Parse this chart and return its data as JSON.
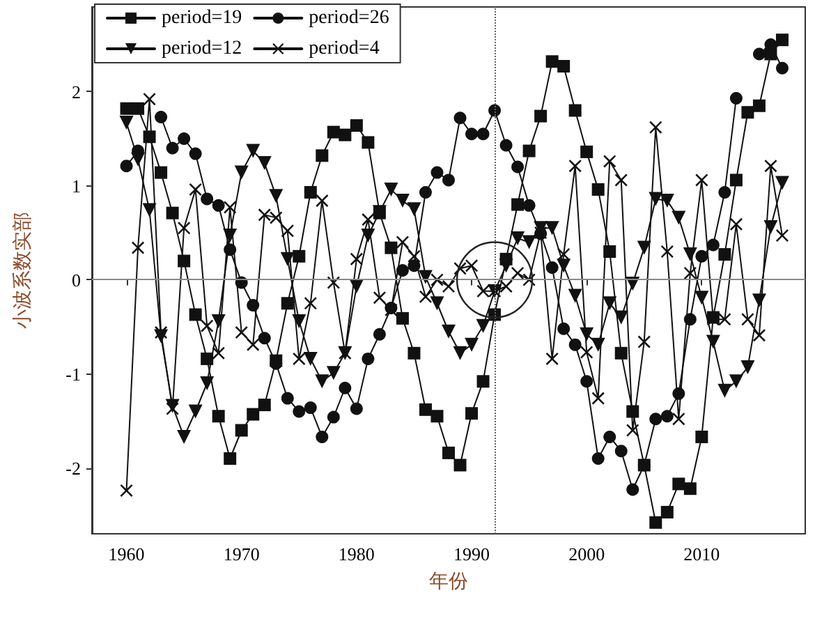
{
  "chart_data": {
    "type": "line",
    "xlabel": "年份",
    "ylabel": "小波系数实部",
    "x": [
      1960,
      1961,
      1962,
      1963,
      1964,
      1965,
      1966,
      1967,
      1968,
      1969,
      1970,
      1971,
      1972,
      1973,
      1974,
      1975,
      1976,
      1977,
      1978,
      1979,
      1980,
      1981,
      1982,
      1983,
      1984,
      1985,
      1986,
      1987,
      1988,
      1989,
      1990,
      1991,
      1992,
      1993,
      1994,
      1995,
      1996,
      1997,
      1998,
      1999,
      2000,
      2001,
      2002,
      2003,
      2004,
      2005,
      2006,
      2007,
      2008,
      2009,
      2010,
      2011,
      2012,
      2013,
      2014,
      2015,
      2016,
      2017
    ],
    "series": [
      {
        "name": "period=19",
        "color": "#111111",
        "marker": "square",
        "values": [
          1.82,
          1.82,
          1.52,
          1.14,
          0.71,
          0.2,
          -0.37,
          -0.84,
          -1.45,
          -1.9,
          -1.6,
          -1.43,
          -1.33,
          -0.86,
          -0.25,
          0.25,
          0.93,
          1.32,
          1.57,
          1.54,
          1.64,
          1.46,
          0.71,
          0.34,
          -0.41,
          -0.78,
          -1.38,
          -1.45,
          -1.84,
          -1.97,
          -1.42,
          -1.08,
          -0.37,
          0.22,
          0.8,
          1.37,
          1.74,
          2.32,
          2.27,
          1.8,
          1.36,
          0.96,
          0.3,
          -0.78,
          -1.4,
          -1.97,
          -2.58,
          -2.47,
          -2.17,
          -2.22,
          -1.67,
          -0.4,
          0.27,
          1.06,
          1.78,
          1.85,
          2.4,
          2.55
        ]
      },
      {
        "name": "period=26",
        "color": "#111111",
        "marker": "circle",
        "values": [
          1.21,
          1.37,
          null,
          1.73,
          1.4,
          1.5,
          1.34,
          0.86,
          0.79,
          0.32,
          -0.03,
          -0.27,
          -0.62,
          -0.89,
          -1.26,
          -1.4,
          -1.36,
          -1.67,
          -1.46,
          -1.15,
          -1.37,
          -0.84,
          -0.58,
          -0.3,
          0.1,
          0.15,
          0.93,
          1.14,
          1.06,
          1.72,
          1.55,
          1.55,
          1.8,
          1.43,
          1.2,
          0.79,
          0.49,
          0.13,
          -0.52,
          -0.69,
          -1.08,
          -1.9,
          -1.67,
          -1.82,
          -2.23,
          -1.97,
          -1.48,
          -1.45,
          -1.21,
          -0.42,
          0.25,
          0.37,
          0.93,
          1.93,
          null,
          2.4,
          2.5,
          2.25
        ]
      },
      {
        "name": "period=12",
        "color": "#111111",
        "marker": "triangle",
        "values": [
          1.67,
          1.28,
          0.74,
          -0.6,
          -1.34,
          -1.67,
          -1.4,
          -1.1,
          -0.44,
          0.47,
          1.14,
          1.37,
          1.24,
          0.89,
          0.22,
          -0.44,
          -0.84,
          -1.08,
          -0.99,
          -0.78,
          -0.07,
          0.47,
          0.72,
          0.96,
          0.84,
          0.75,
          0.03,
          -0.25,
          -0.55,
          -0.78,
          -0.69,
          -0.49,
          -0.12,
          0.15,
          0.44,
          0.4,
          0.55,
          0.55,
          0.15,
          -0.17,
          -0.58,
          -0.69,
          -0.25,
          -0.4,
          -0.04,
          0.34,
          0.86,
          0.84,
          0.66,
          0.27,
          -0.19,
          -0.66,
          -1.18,
          -1.08,
          -0.93,
          -0.22,
          0.56,
          1.03
        ]
      },
      {
        "name": "period=4",
        "color": "#111111",
        "marker": "cross",
        "values": [
          -2.24,
          0.34,
          1.92,
          -0.56,
          -1.37,
          0.55,
          0.96,
          -0.49,
          -0.78,
          0.77,
          -0.56,
          -0.69,
          0.69,
          0.66,
          0.52,
          -0.84,
          -0.25,
          0.84,
          -0.03,
          -0.78,
          0.22,
          0.64,
          -0.19,
          -0.32,
          0.4,
          0.25,
          -0.18,
          0,
          -0.07,
          0.12,
          0.15,
          -0.12,
          -0.12,
          -0.07,
          0.07,
          0,
          0.5,
          -0.84,
          0.27,
          1.21,
          -0.77,
          -1.26,
          1.26,
          1.06,
          -1.6,
          -0.66,
          1.62,
          0.3,
          -1.48,
          0.07,
          1.06,
          -0.42,
          -0.42,
          0.59,
          -0.42,
          -0.59,
          1.21,
          0.47
        ]
      }
    ],
    "xlim": [
      1957,
      2019
    ],
    "xticks": [
      1960,
      1970,
      1980,
      1990,
      2000,
      2010
    ],
    "ylim": [
      -2.7,
      2.9
    ],
    "yticks": [
      -2,
      -1,
      0,
      1,
      2
    ],
    "ref_lines": [
      {
        "axis": "y",
        "value": 0,
        "color": "#888888",
        "line_style": "solid"
      },
      {
        "axis": "x",
        "value": 1992,
        "color": "#666666",
        "line_style": "dotted"
      }
    ],
    "legend": "top left",
    "grid": false,
    "line_style": "solid"
  }
}
